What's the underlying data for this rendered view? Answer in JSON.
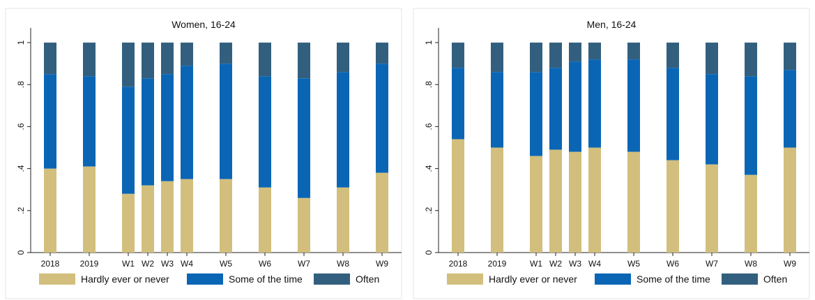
{
  "chart_data": [
    {
      "type": "bar",
      "stacked": true,
      "title": "Women, 16-24",
      "categories": [
        "2018",
        "2019",
        "W1",
        "W2",
        "W3",
        "W4",
        "W5",
        "W6",
        "W7",
        "W8",
        "W9"
      ],
      "x_positions": [
        1,
        2,
        3,
        3.5,
        4,
        4.5,
        5.5,
        6.5,
        7.5,
        8.5,
        9.5
      ],
      "series": [
        {
          "name": "Hardly ever or never",
          "color": "#d2bf7d",
          "values": [
            0.4,
            0.41,
            0.28,
            0.32,
            0.34,
            0.35,
            0.35,
            0.31,
            0.26,
            0.31,
            0.38
          ]
        },
        {
          "name": "Some of the time",
          "color": "#0a66b5",
          "values": [
            0.45,
            0.43,
            0.51,
            0.51,
            0.51,
            0.54,
            0.55,
            0.53,
            0.57,
            0.55,
            0.52
          ]
        },
        {
          "name": "Often",
          "color": "#335f7f",
          "values": [
            0.15,
            0.16,
            0.21,
            0.17,
            0.15,
            0.11,
            0.1,
            0.16,
            0.17,
            0.14,
            0.1
          ]
        }
      ],
      "yticks": [
        "0",
        ".2",
        ".4",
        ".6",
        ".8",
        "1"
      ],
      "ylim": [
        0,
        1.05
      ],
      "legend": "bottom"
    },
    {
      "type": "bar",
      "stacked": true,
      "title": "Men, 16-24",
      "categories": [
        "2018",
        "2019",
        "W1",
        "W2",
        "W3",
        "W4",
        "W5",
        "W6",
        "W7",
        "W8",
        "W9"
      ],
      "x_positions": [
        1,
        2,
        3,
        3.5,
        4,
        4.5,
        5.5,
        6.5,
        7.5,
        8.5,
        9.5
      ],
      "series": [
        {
          "name": "Hardly ever or never",
          "color": "#d2bf7d",
          "values": [
            0.54,
            0.5,
            0.46,
            0.49,
            0.48,
            0.5,
            0.48,
            0.44,
            0.42,
            0.37,
            0.5
          ]
        },
        {
          "name": "Some of the time",
          "color": "#0a66b5",
          "values": [
            0.34,
            0.36,
            0.4,
            0.39,
            0.43,
            0.42,
            0.44,
            0.44,
            0.43,
            0.47,
            0.37
          ]
        },
        {
          "name": "Often",
          "color": "#335f7f",
          "values": [
            0.12,
            0.14,
            0.14,
            0.12,
            0.09,
            0.08,
            0.08,
            0.12,
            0.15,
            0.16,
            0.13
          ]
        }
      ],
      "yticks": [
        "0",
        ".2",
        ".4",
        ".6",
        ".8",
        "1"
      ],
      "ylim": [
        0,
        1.05
      ],
      "legend": "bottom"
    }
  ]
}
